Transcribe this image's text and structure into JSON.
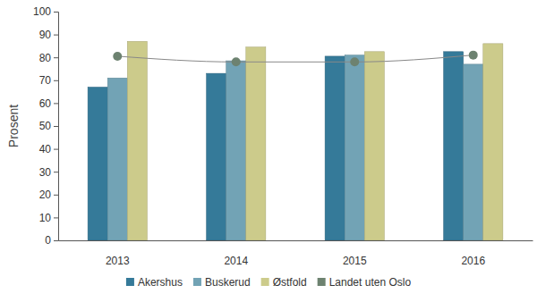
{
  "chart_data": {
    "type": "bar",
    "y_label": "Prosent",
    "categories": [
      "2013",
      "2014",
      "2015",
      "2016"
    ],
    "series": [
      {
        "name": "Akershus",
        "type": "bar",
        "color": "#357a99",
        "values": [
          67,
          73,
          80.5,
          82.5
        ]
      },
      {
        "name": "Buskerud",
        "type": "bar",
        "color": "#72a3b5",
        "values": [
          71,
          78.5,
          81,
          77
        ]
      },
      {
        "name": "Østfold",
        "type": "bar",
        "color": "#cccb8b",
        "values": [
          87,
          84.5,
          82.5,
          86
        ]
      },
      {
        "name": "Landet uten Oslo",
        "type": "line",
        "color": "#6d8270",
        "marker": "circle",
        "line_style": "solid",
        "values": [
          80.5,
          78,
          78,
          81
        ]
      }
    ],
    "ylim": [
      0,
      100
    ],
    "yticks": [
      0,
      10,
      20,
      30,
      40,
      50,
      60,
      70,
      80,
      90,
      100
    ],
    "grid": false,
    "legend": "bottom"
  }
}
